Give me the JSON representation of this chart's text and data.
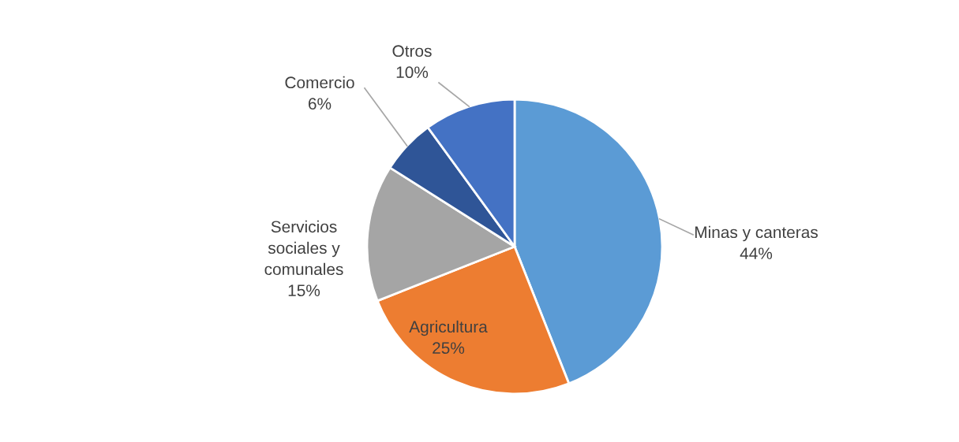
{
  "chart_data": {
    "type": "pie",
    "categories": [
      "Minas y canteras",
      "Agricultura",
      "Servicios\nsociales y\ncomunales",
      "Comercio",
      "Otros"
    ],
    "values": [
      44,
      25,
      15,
      6,
      10
    ],
    "colors": [
      "#5b9bd5",
      "#ed7d31",
      "#a5a5a5",
      "#2f5597",
      "#4472c4"
    ],
    "value_labels": [
      "44%",
      "25%",
      "15%",
      "6%",
      "10%"
    ],
    "legend": false
  }
}
